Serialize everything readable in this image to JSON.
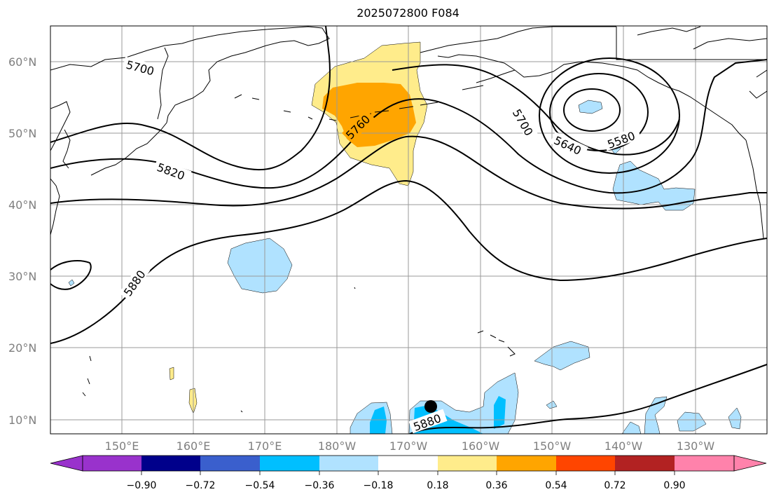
{
  "title": "2025072800 F084",
  "map": {
    "projection": "PlateCarree",
    "extent_lon": [
      140,
      240
    ],
    "extent_lat": [
      8,
      65
    ],
    "lat_labels": [
      "10°N",
      "20°N",
      "30°N",
      "40°N",
      "50°N",
      "60°N"
    ],
    "lon_labels": [
      "150°E",
      "160°E",
      "170°E",
      "180°W",
      "170°W",
      "160°W",
      "150°W",
      "140°W",
      "130°W"
    ],
    "gridlines": true,
    "contour_labels": [
      "5700",
      "5760",
      "5700",
      "5640",
      "5580",
      "5820",
      "5880",
      "5880"
    ],
    "marker": "storm-center-dot"
  },
  "colorbar": {
    "ticks": [
      "−0.90",
      "−0.72",
      "−0.54",
      "−0.36",
      "−0.18",
      "0.18",
      "0.36",
      "0.54",
      "0.72",
      "0.90"
    ],
    "colors": [
      "#9932cc",
      "#00008b",
      "#3a5fcd",
      "#00bfff",
      "#b0e2ff",
      "#ffffff",
      "#ffec8b",
      "#ffa500",
      "#ff4500",
      "#b22222",
      "#ff82ab"
    ]
  }
}
